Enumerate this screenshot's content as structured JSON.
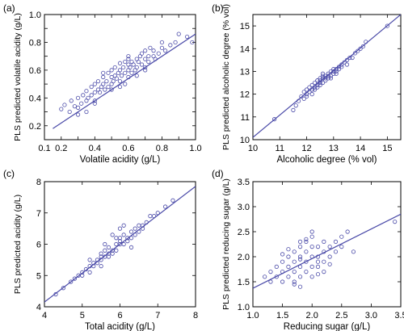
{
  "colors": {
    "points": "#4a4aa8",
    "fit_line": "#4a4aa8",
    "axis": "#000000"
  },
  "chart_data": [
    {
      "type": "scatter",
      "panel_label": "(a)",
      "xlabel": "Volatile acidity (g/L)",
      "ylabel": "PLS predicted volatile acidity (g/L)",
      "xlim": [
        0.1,
        1.0
      ],
      "ylim": [
        0.1,
        1.0
      ],
      "xticks": [
        0.1,
        0.2,
        0.3,
        0.4,
        0.5,
        0.6,
        0.7,
        0.8,
        0.9,
        1.0
      ],
      "xtick_labels": [
        "0.1",
        "0.2",
        "",
        "0.4",
        "",
        "0.6",
        "",
        "0.8",
        "",
        "1.0"
      ],
      "yticks": [
        0.1,
        0.2,
        0.3,
        0.4,
        0.5,
        0.6,
        0.7,
        0.8,
        0.9,
        1.0
      ],
      "ytick_labels": [
        "",
        "0.2",
        "",
        "0.4",
        "",
        "0.6",
        "",
        "0.8",
        "",
        "1.0"
      ],
      "fit_line": [
        [
          0.15,
          0.18
        ],
        [
          1.0,
          0.86
        ]
      ],
      "x": [
        0.2,
        0.22,
        0.25,
        0.26,
        0.28,
        0.3,
        0.3,
        0.32,
        0.33,
        0.35,
        0.35,
        0.36,
        0.38,
        0.38,
        0.4,
        0.4,
        0.4,
        0.42,
        0.42,
        0.43,
        0.44,
        0.45,
        0.45,
        0.46,
        0.47,
        0.48,
        0.48,
        0.5,
        0.5,
        0.5,
        0.51,
        0.52,
        0.52,
        0.53,
        0.54,
        0.55,
        0.55,
        0.55,
        0.56,
        0.57,
        0.58,
        0.58,
        0.6,
        0.6,
        0.6,
        0.6,
        0.61,
        0.62,
        0.62,
        0.63,
        0.64,
        0.65,
        0.65,
        0.66,
        0.67,
        0.68,
        0.68,
        0.7,
        0.7,
        0.7,
        0.72,
        0.72,
        0.73,
        0.75,
        0.75,
        0.76,
        0.78,
        0.8,
        0.8,
        0.82,
        0.85,
        0.88,
        0.9,
        0.95,
        0.98,
        0.45,
        0.5,
        0.55,
        0.6,
        0.65,
        0.35,
        0.3,
        0.4,
        0.7,
        0.58
      ],
      "y": [
        0.32,
        0.35,
        0.3,
        0.38,
        0.34,
        0.4,
        0.33,
        0.36,
        0.42,
        0.38,
        0.45,
        0.4,
        0.42,
        0.48,
        0.44,
        0.38,
        0.5,
        0.46,
        0.52,
        0.44,
        0.48,
        0.5,
        0.55,
        0.46,
        0.52,
        0.58,
        0.48,
        0.55,
        0.5,
        0.6,
        0.52,
        0.56,
        0.62,
        0.54,
        0.58,
        0.6,
        0.52,
        0.65,
        0.56,
        0.62,
        0.58,
        0.66,
        0.6,
        0.55,
        0.64,
        0.7,
        0.62,
        0.58,
        0.66,
        0.64,
        0.6,
        0.68,
        0.62,
        0.66,
        0.7,
        0.64,
        0.72,
        0.68,
        0.62,
        0.74,
        0.66,
        0.7,
        0.76,
        0.7,
        0.74,
        0.68,
        0.72,
        0.76,
        0.8,
        0.74,
        0.78,
        0.8,
        0.86,
        0.84,
        0.8,
        0.58,
        0.46,
        0.48,
        0.68,
        0.56,
        0.3,
        0.28,
        0.36,
        0.6,
        0.5
      ]
    },
    {
      "type": "scatter",
      "panel_label": "(b)",
      "xlabel": "Alcoholic degree (% vol)",
      "ylabel": "PLS predicted alcoholic degree (% vol)",
      "xlim": [
        10,
        15.5
      ],
      "ylim": [
        10,
        15.5
      ],
      "xticks": [
        10,
        11,
        12,
        13,
        14,
        15
      ],
      "xtick_labels": [
        "10",
        "11",
        "12",
        "13",
        "14",
        "15"
      ],
      "yticks": [
        10,
        11,
        12,
        13,
        14,
        15
      ],
      "ytick_labels": [
        "10",
        "11",
        "12",
        "13",
        "14",
        "15"
      ],
      "fit_line": [
        [
          10,
          10.1
        ],
        [
          15.5,
          15.5
        ]
      ],
      "x": [
        10.8,
        11.5,
        11.6,
        11.7,
        11.8,
        11.9,
        12.0,
        12.0,
        12.1,
        12.1,
        12.2,
        12.2,
        12.3,
        12.3,
        12.3,
        12.4,
        12.4,
        12.4,
        12.5,
        12.5,
        12.5,
        12.5,
        12.6,
        12.6,
        12.6,
        12.7,
        12.7,
        12.7,
        12.8,
        12.8,
        12.8,
        12.9,
        12.9,
        13.0,
        13.0,
        13.0,
        13.1,
        13.1,
        13.2,
        13.2,
        13.3,
        13.3,
        13.4,
        13.5,
        13.6,
        13.7,
        13.8,
        13.9,
        14.0,
        14.1,
        14.2,
        15.0,
        12.2,
        12.6,
        13.1,
        11.9,
        12.9,
        12.4,
        13.5,
        12.0
      ],
      "y": [
        10.9,
        11.3,
        11.5,
        11.7,
        11.9,
        11.8,
        12.0,
        12.2,
        12.1,
        12.3,
        12.2,
        12.4,
        12.3,
        12.5,
        12.2,
        12.4,
        12.6,
        12.3,
        12.5,
        12.7,
        12.4,
        12.6,
        12.5,
        12.7,
        12.8,
        12.6,
        12.8,
        12.7,
        12.7,
        12.9,
        12.8,
        12.8,
        13.0,
        12.9,
        13.1,
        13.0,
        13.1,
        13.0,
        13.2,
        13.1,
        13.3,
        13.2,
        13.4,
        13.5,
        13.6,
        13.6,
        13.8,
        13.9,
        14.0,
        14.1,
        14.3,
        15.0,
        12.0,
        12.9,
        12.9,
        12.1,
        12.7,
        12.6,
        13.3,
        11.9
      ]
    },
    {
      "type": "scatter",
      "panel_label": "(c)",
      "xlabel": "Total acidity (g/L)",
      "ylabel": "PLS predicted acidity (g/L)",
      "xlim": [
        4,
        8
      ],
      "ylim": [
        4,
        8
      ],
      "xticks": [
        4,
        5,
        6,
        7,
        8
      ],
      "xtick_labels": [
        "4",
        "5",
        "6",
        "7",
        "8"
      ],
      "yticks": [
        4,
        5,
        6,
        7,
        8
      ],
      "ytick_labels": [
        "4",
        "5",
        "6",
        "7",
        "8"
      ],
      "fit_line": [
        [
          4,
          4.15
        ],
        [
          8,
          7.85
        ]
      ],
      "x": [
        4.3,
        4.5,
        4.7,
        4.8,
        4.9,
        5.0,
        5.0,
        5.1,
        5.2,
        5.2,
        5.3,
        5.3,
        5.4,
        5.4,
        5.5,
        5.5,
        5.5,
        5.6,
        5.6,
        5.7,
        5.7,
        5.7,
        5.8,
        5.8,
        5.9,
        5.9,
        6.0,
        6.0,
        6.0,
        6.1,
        6.1,
        6.2,
        6.2,
        6.3,
        6.3,
        6.4,
        6.4,
        6.5,
        6.5,
        6.6,
        6.7,
        6.8,
        6.9,
        7.0,
        7.2,
        7.4,
        5.2,
        5.6,
        6.1,
        6.3,
        5.9,
        6.0,
        5.5,
        6.6,
        5.8
      ],
      "y": [
        4.4,
        4.6,
        4.8,
        4.9,
        5.0,
        5.0,
        5.1,
        5.2,
        5.3,
        5.1,
        5.4,
        5.3,
        5.5,
        5.4,
        5.5,
        5.6,
        5.7,
        5.6,
        5.8,
        5.7,
        5.6,
        5.9,
        5.8,
        5.7,
        6.0,
        5.8,
        6.0,
        6.1,
        6.2,
        6.0,
        6.3,
        6.1,
        6.2,
        6.2,
        6.4,
        6.3,
        6.5,
        6.4,
        6.6,
        6.6,
        6.7,
        6.9,
        6.9,
        7.0,
        7.2,
        7.4,
        5.5,
        6.0,
        6.6,
        5.9,
        6.2,
        6.5,
        5.3,
        6.5,
        6.3
      ]
    },
    {
      "type": "scatter",
      "panel_label": "(d)",
      "xlabel": "Reducing sugar (g/L)",
      "ylabel": "PLS predicted reducing sugar (g/L)",
      "xlim": [
        1.0,
        3.5
      ],
      "ylim": [
        1.0,
        3.5
      ],
      "xticks": [
        1.0,
        1.5,
        2.0,
        2.5,
        3.0,
        3.5
      ],
      "xtick_labels": [
        "1.0",
        "1.5",
        "2.0",
        "2.5",
        "3.0",
        "3.5"
      ],
      "yticks": [
        1.0,
        1.5,
        2.0,
        2.5,
        3.0,
        3.5
      ],
      "ytick_labels": [
        "1.0",
        "1.5",
        "2.0",
        "2.5",
        "3.0",
        "3.5"
      ],
      "fit_line": [
        [
          1.0,
          1.37
        ],
        [
          3.5,
          2.85
        ]
      ],
      "x": [
        1.2,
        1.3,
        1.3,
        1.4,
        1.4,
        1.5,
        1.5,
        1.5,
        1.6,
        1.6,
        1.6,
        1.7,
        1.7,
        1.7,
        1.7,
        1.8,
        1.8,
        1.8,
        1.8,
        1.8,
        1.9,
        1.9,
        1.9,
        1.9,
        2.0,
        2.0,
        2.0,
        2.0,
        2.0,
        2.1,
        2.1,
        2.1,
        2.1,
        2.2,
        2.2,
        2.2,
        2.3,
        2.3,
        2.4,
        2.4,
        2.5,
        2.5,
        2.6,
        2.7,
        3.4,
        1.8,
        1.9,
        2.0,
        1.7,
        2.2,
        1.6,
        2.1,
        1.5,
        2.3,
        1.8
      ],
      "y": [
        1.6,
        1.5,
        1.7,
        1.6,
        1.8,
        1.5,
        1.7,
        1.9,
        1.6,
        1.8,
        2.0,
        1.5,
        1.7,
        1.9,
        2.1,
        1.6,
        1.8,
        2.0,
        2.2,
        2.3,
        1.7,
        1.9,
        2.1,
        2.3,
        1.6,
        1.8,
        2.0,
        2.2,
        2.4,
        1.8,
        2.0,
        2.2,
        1.9,
        1.9,
        2.1,
        2.3,
        2.0,
        2.2,
        2.1,
        2.3,
        2.2,
        2.4,
        2.5,
        2.1,
        2.7,
        1.4,
        2.35,
        2.5,
        1.45,
        1.7,
        2.15,
        1.65,
        2.05,
        1.85,
        1.95
      ]
    }
  ]
}
